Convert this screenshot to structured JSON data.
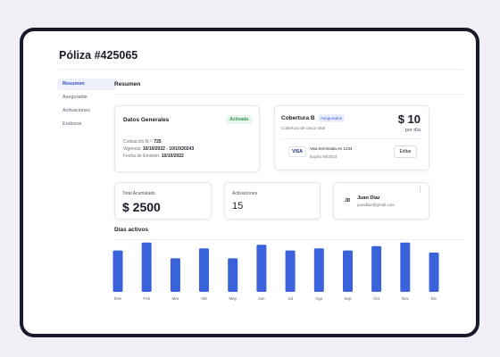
{
  "page": {
    "title": "Póliza #425065"
  },
  "sidebar": {
    "items": [
      {
        "label": "Resumen",
        "active": true
      },
      {
        "label": "Asegurable",
        "active": false
      },
      {
        "label": "Activaciones",
        "active": false
      },
      {
        "label": "Endosos",
        "active": false
      }
    ]
  },
  "section": {
    "title": "Resumen"
  },
  "general": {
    "title": "Datos Generales",
    "status": "Activada",
    "quote_label": "Cotización N.º:",
    "quote_value": "725",
    "validity_label": "Vigencia:",
    "validity_value": "10/10/2022 - 10/10/20243",
    "issue_label": "Fecha de Emisión:",
    "issue_value": "10/10/2022"
  },
  "coverage": {
    "name": "Cobertura B",
    "badge": "Asegurados",
    "description": "Cobertura de casco total",
    "price": "$ 10",
    "per": "por día",
    "card_brand": "VISA",
    "card_ending": "Visa terminada en 1234",
    "card_expiry": "Expira 08/2024",
    "edit_label": "Editar"
  },
  "stats": {
    "total_label": "Total Acumulado",
    "total_value": "$ 2500",
    "activations_label": "Activaciones",
    "activations_value": "15"
  },
  "user": {
    "initials": "JD",
    "name": "Juan Diaz",
    "email": "juandiaz@gmail.com",
    "menu_icon": "kebab-icon"
  },
  "colors": {
    "accent": "#3a63db",
    "badge_green": "#2f9a4e",
    "frame": "#161a2a"
  },
  "chart_data": {
    "type": "bar",
    "title": "Días activos",
    "categories": [
      "Ene",
      "Feb",
      "Mar",
      "Abr",
      "May",
      "Jun",
      "Jul",
      "Ago",
      "Sep",
      "Oct",
      "Nov",
      "Dic"
    ],
    "values": [
      58,
      69,
      47,
      61,
      47,
      66,
      58,
      61,
      58,
      64,
      69,
      55
    ],
    "ylim": [
      0,
      75
    ],
    "grid": false
  }
}
